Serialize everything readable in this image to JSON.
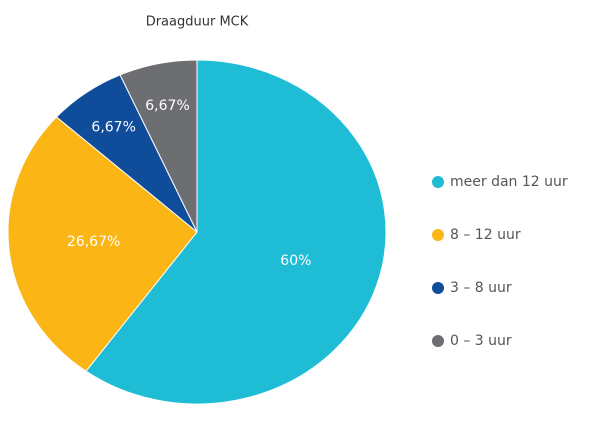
{
  "chart_data": {
    "type": "pie",
    "title": "Draagduur MCK",
    "categories": [
      "meer dan 12 uur",
      "8 – 12 uur",
      "3 – 8 uur",
      "0 – 3 uur"
    ],
    "values": [
      60,
      26.67,
      6.67,
      6.67
    ],
    "value_labels": [
      "60%",
      "26,67%",
      "6,67%",
      "6,67%"
    ],
    "colors": [
      "#1fbcd6",
      "#fbb515",
      "#0f4c9a",
      "#6d6e71"
    ],
    "legend": "right"
  }
}
